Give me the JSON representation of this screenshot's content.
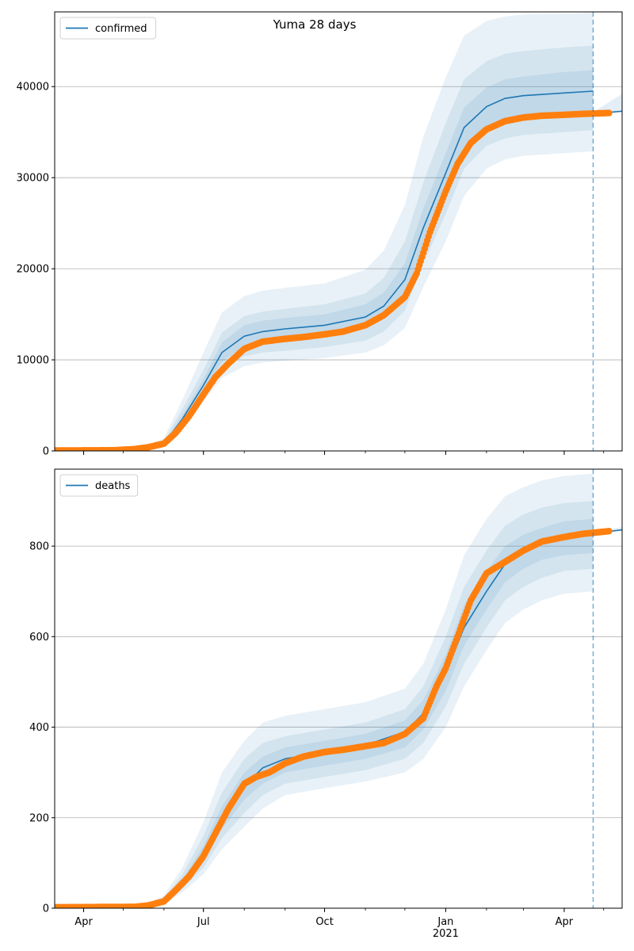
{
  "figure": {
    "title": "Yuma 28 days"
  },
  "chart_data": [
    {
      "type": "line",
      "title": "Yuma 28 days",
      "legend": {
        "position": "top-left",
        "entries": [
          "confirmed"
        ]
      },
      "grid": "horizontal",
      "xlim": [
        "2020-03-10",
        "2021-05-15"
      ],
      "ylim": [
        0,
        48200
      ],
      "yticks": [
        0,
        10000,
        20000,
        30000,
        40000
      ],
      "xticks": [
        {
          "date": "2020-04-01",
          "label": ""
        },
        {
          "date": "2020-07-01",
          "label": ""
        },
        {
          "date": "2020-10-01",
          "label": ""
        },
        {
          "date": "2021-01-01",
          "label": ""
        },
        {
          "date": "2021-04-01",
          "label": ""
        }
      ],
      "forecast_start": "2021-04-23",
      "model": {
        "name": "confirmed",
        "color": "#1f77b4",
        "x": [
          "2020-03-10",
          "2020-05-01",
          "2020-05-15",
          "2020-06-01",
          "2020-06-15",
          "2020-07-01",
          "2020-07-15",
          "2020-08-01",
          "2020-08-15",
          "2020-09-01",
          "2020-10-01",
          "2020-11-01",
          "2020-11-15",
          "2020-12-01",
          "2020-12-15",
          "2021-01-01",
          "2021-01-15",
          "2021-02-01",
          "2021-02-15",
          "2021-03-01",
          "2021-04-01",
          "2021-04-23"
        ],
        "y": [
          0,
          50,
          200,
          800,
          3500,
          7200,
          10800,
          12600,
          13100,
          13400,
          13800,
          14700,
          15900,
          18800,
          24500,
          30500,
          35500,
          37800,
          38700,
          39000,
          39300,
          39500
        ],
        "bands": [
          {
            "lower": [
              0,
              30,
              120,
              480,
              2400,
              5400,
              8000,
              9300,
              9700,
              9900,
              10200,
              10800,
              11600,
              13500,
              18000,
              23000,
              28000,
              31000,
              32000,
              32400,
              32700,
              32900
            ],
            "upper": [
              0,
              80,
              340,
              1400,
              5600,
              10800,
              15200,
              17000,
              17600,
              17900,
              18400,
              19900,
              22000,
              27000,
              34500,
              41000,
              45600,
              47200,
              47700,
              47900,
              48000,
              48100
            ]
          },
          {
            "lower": [
              0,
              36,
              150,
              600,
              2800,
              6000,
              8900,
              10400,
              10800,
              11000,
              11400,
              12100,
              13100,
              15400,
              20600,
              26000,
              31000,
              33500,
              34300,
              34700,
              35000,
              35200
            ],
            "upper": [
              0,
              68,
              270,
              1100,
              4600,
              8900,
              13000,
              14800,
              15300,
              15600,
              16100,
              17300,
              19000,
              23000,
              29500,
              36000,
              40800,
              42800,
              43600,
              43900,
              44300,
              44500
            ]
          },
          {
            "lower": [
              0,
              42,
              175,
              700,
              3100,
              6600,
              9800,
              11500,
              12000,
              12200,
              12600,
              13400,
              14500,
              17100,
              22500,
              28500,
              33300,
              35700,
              36500,
              36800,
              37100,
              37300
            ],
            "upper": [
              0,
              58,
              230,
              930,
              3950,
              7900,
              11900,
              13800,
              14300,
              14600,
              15000,
              16100,
              17400,
              20600,
              26600,
              32700,
              37700,
              39900,
              40800,
              41100,
              41600,
              41800
            ]
          }
        ]
      },
      "observed": {
        "color": "#ff7f0e",
        "x": [
          "2020-03-10",
          "2020-04-10",
          "2020-04-25",
          "2020-05-10",
          "2020-05-20",
          "2020-06-01",
          "2020-06-10",
          "2020-06-20",
          "2020-07-01",
          "2020-07-10",
          "2020-07-20",
          "2020-08-01",
          "2020-08-15",
          "2020-09-01",
          "2020-09-15",
          "2020-10-01",
          "2020-10-15",
          "2020-11-01",
          "2020-11-15",
          "2020-12-01",
          "2020-12-10",
          "2020-12-20",
          "2021-01-01",
          "2021-01-10",
          "2021-01-20",
          "2021-02-01",
          "2021-02-15",
          "2021-03-01",
          "2021-03-15",
          "2021-04-01",
          "2021-04-15",
          "2021-05-05"
        ],
        "y": [
          50,
          60,
          80,
          200,
          400,
          800,
          2000,
          3800,
          6200,
          8100,
          9600,
          11200,
          12000,
          12300,
          12500,
          12800,
          13100,
          13800,
          14900,
          16900,
          19500,
          24000,
          28500,
          31500,
          33800,
          35300,
          36200,
          36600,
          36800,
          36900,
          37000,
          37100
        ]
      },
      "tail": {
        "x": [
          "2021-04-23",
          "2021-05-15"
        ],
        "y": [
          37000,
          37300
        ],
        "band_upper": [
          37200,
          39200
        ]
      }
    },
    {
      "type": "line",
      "legend": {
        "position": "top-left",
        "entries": [
          "deaths"
        ]
      },
      "grid": "horizontal",
      "xlim": [
        "2020-03-10",
        "2021-05-15"
      ],
      "ylim": [
        0,
        970
      ],
      "yticks": [
        0,
        200,
        400,
        600,
        800
      ],
      "xticks": [
        {
          "date": "2020-04-01",
          "label": "Apr"
        },
        {
          "date": "2020-07-01",
          "label": "Jul"
        },
        {
          "date": "2020-10-01",
          "label": "Oct"
        },
        {
          "date": "2021-01-01",
          "label": "Jan\n2021"
        },
        {
          "date": "2021-04-01",
          "label": "Apr"
        }
      ],
      "forecast_start": "2021-04-23",
      "model": {
        "name": "deaths",
        "color": "#1f77b4",
        "x": [
          "2020-03-10",
          "2020-05-15",
          "2020-06-01",
          "2020-06-15",
          "2020-07-01",
          "2020-07-15",
          "2020-08-01",
          "2020-08-15",
          "2020-09-01",
          "2020-10-01",
          "2020-11-01",
          "2020-12-01",
          "2020-12-15",
          "2021-01-01",
          "2021-01-15",
          "2021-02-01",
          "2021-02-15",
          "2021-03-01",
          "2021-03-15",
          "2021-04-01",
          "2021-04-23"
        ],
        "y": [
          0,
          2,
          15,
          55,
          120,
          200,
          270,
          310,
          330,
          345,
          360,
          390,
          430,
          520,
          620,
          700,
          760,
          790,
          810,
          820,
          828
        ],
        "bands": [
          {
            "lower": [
              0,
              1,
              8,
              35,
              75,
              130,
              180,
              220,
              250,
              265,
              280,
              300,
              330,
              400,
              490,
              570,
              630,
              660,
              680,
              695,
              700
            ],
            "upper": [
              0,
              4,
              28,
              90,
              190,
              300,
              370,
              410,
              425,
              440,
              455,
              485,
              540,
              660,
              780,
              860,
              910,
              930,
              945,
              955,
              960
            ]
          },
          {
            "lower": [
              0,
              1,
              10,
              42,
              90,
              155,
              210,
              250,
              275,
              290,
              305,
              330,
              365,
              445,
              540,
              620,
              680,
              710,
              730,
              745,
              750
            ],
            "upper": [
              0,
              3,
              22,
              75,
              160,
              255,
              330,
              365,
              380,
              395,
              410,
              440,
              490,
              600,
              710,
              790,
              845,
              870,
              885,
              895,
              900
            ]
          },
          {
            "lower": [
              0,
              2,
              12,
              48,
              105,
              175,
              240,
              275,
              300,
              315,
              330,
              355,
              395,
              480,
              580,
              660,
              720,
              750,
              770,
              780,
              785
            ],
            "upper": [
              0,
              3,
              18,
              63,
              138,
              225,
              300,
              335,
              355,
              370,
              385,
              415,
              460,
              560,
              670,
              745,
              800,
              825,
              840,
              855,
              860
            ]
          }
        ]
      },
      "observed": {
        "color": "#ff7f0e",
        "x": [
          "2020-03-10",
          "2020-05-10",
          "2020-05-20",
          "2020-06-01",
          "2020-06-10",
          "2020-06-20",
          "2020-07-01",
          "2020-07-10",
          "2020-07-20",
          "2020-08-01",
          "2020-08-10",
          "2020-08-20",
          "2020-09-01",
          "2020-09-15",
          "2020-10-01",
          "2020-10-15",
          "2020-11-01",
          "2020-11-15",
          "2020-12-01",
          "2020-12-15",
          "2020-12-25",
          "2021-01-01",
          "2021-01-10",
          "2021-01-20",
          "2021-02-01",
          "2021-02-15",
          "2021-03-01",
          "2021-03-15",
          "2021-04-01",
          "2021-04-15",
          "2021-05-05"
        ],
        "y": [
          2,
          3,
          6,
          15,
          40,
          70,
          115,
          165,
          220,
          275,
          290,
          300,
          320,
          335,
          345,
          350,
          358,
          365,
          385,
          420,
          490,
          530,
          600,
          680,
          740,
          765,
          790,
          810,
          820,
          827,
          833
        ]
      },
      "tail": {
        "x": [
          "2021-04-23",
          "2021-05-15"
        ],
        "y": [
          828,
          836
        ],
        "band_upper": [
          832,
          842
        ]
      }
    }
  ]
}
